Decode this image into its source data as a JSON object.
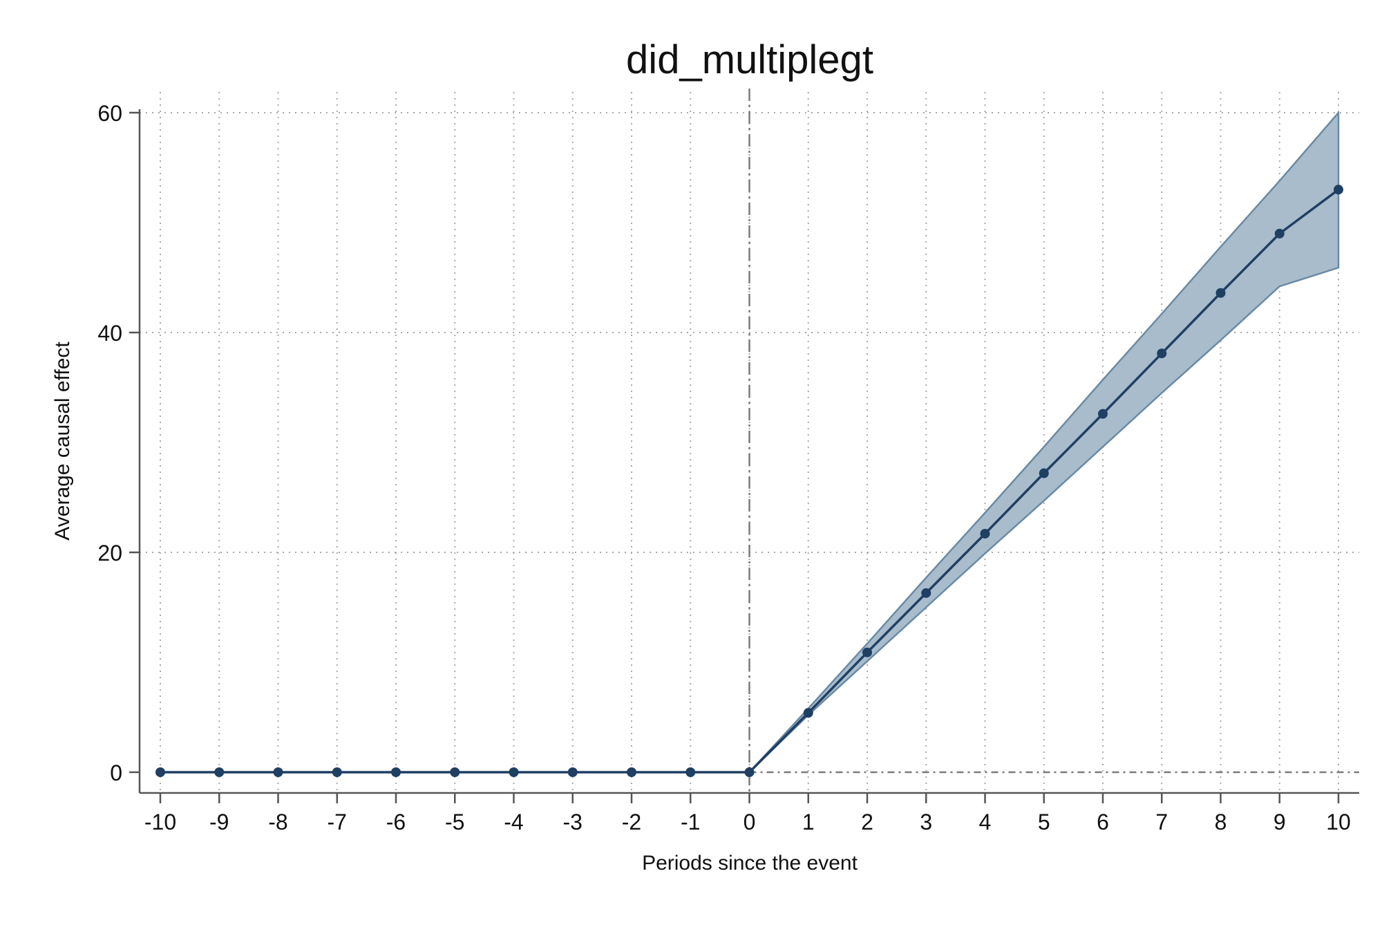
{
  "chart_data": {
    "type": "line",
    "title": "did_multiplegt",
    "xlabel": "Periods since the event",
    "ylabel": "Average causal effect",
    "x": [
      -10,
      -9,
      -8,
      -7,
      -6,
      -5,
      -4,
      -3,
      -2,
      -1,
      0,
      1,
      2,
      3,
      4,
      5,
      6,
      7,
      8,
      9,
      10
    ],
    "xticks": [
      "-10",
      "-9",
      "-8",
      "-7",
      "-6",
      "-5",
      "-4",
      "-3",
      "-2",
      "-1",
      "0",
      "1",
      "2",
      "3",
      "4",
      "5",
      "6",
      "7",
      "8",
      "9",
      "10"
    ],
    "yticks": [
      "0",
      "20",
      "40",
      "60"
    ],
    "series": [
      {
        "values": [
          0,
          0,
          0,
          0,
          0,
          0,
          0,
          0,
          0,
          0,
          0,
          5.4,
          10.9,
          16.3,
          21.7,
          27.2,
          32.6,
          38.1,
          43.6,
          49.0,
          53.0
        ],
        "ci_lower": [
          0,
          0,
          0,
          0,
          0,
          0,
          0,
          0,
          0,
          0,
          0,
          5.2,
          10.1,
          15.0,
          19.9,
          24.7,
          29.6,
          34.5,
          39.3,
          44.2,
          45.9
        ],
        "ci_upper": [
          0,
          0,
          0,
          0,
          0,
          0,
          0,
          0,
          0,
          0,
          0,
          5.8,
          11.7,
          17.7,
          23.6,
          29.6,
          35.7,
          41.7,
          47.8,
          53.8,
          60.0
        ]
      }
    ],
    "xlim": [
      -10,
      10
    ],
    "ylim": [
      0,
      60
    ],
    "reference_lines": {
      "vertical_x": 0,
      "horizontal_y": 0
    },
    "grid": true,
    "legend": "none",
    "colors": {
      "line": "#1f3f63",
      "band_fill": "#a9bccb",
      "band_edge": "#6a8aa5",
      "reference": "#7a7a7a",
      "grid": "#a8a8a8",
      "axis": "#555555"
    }
  }
}
